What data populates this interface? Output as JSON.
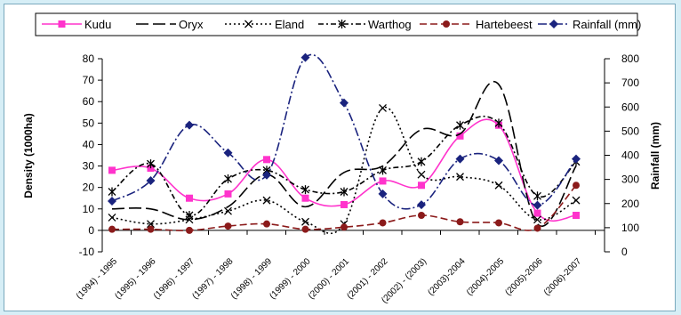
{
  "chart_data": {
    "type": "line",
    "categories": [
      "(1994) - 1995",
      "(1995) - 1996",
      "(1996) - 1997",
      "(1997) - 1998",
      "(1998) - 1999",
      "(1999) - 2000",
      "(2000) - 2001",
      "(2001) - 2002",
      "(2002) - (2003)",
      "(2003)-2004",
      "(2004)-2005",
      "(2005)-2006",
      "(2006)-2007"
    ],
    "ylabel": "Density (1000ha)",
    "y2label": "Rainfall (mm)",
    "ylim": [
      -10,
      80
    ],
    "y2lim": [
      0,
      800
    ],
    "yticks": [
      "-10",
      "0",
      "10",
      "20",
      "30",
      "40",
      "50",
      "60",
      "70",
      "80"
    ],
    "y2ticks": [
      "0",
      "100",
      "200",
      "300",
      "400",
      "500",
      "600",
      "700",
      "800"
    ],
    "legend_position": "top",
    "series": [
      {
        "name": "Kudu",
        "axis": "left",
        "color": "#ff33cc",
        "dash": "",
        "marker": "square",
        "values": [
          28,
          29,
          15,
          17,
          33,
          15,
          12,
          23,
          21,
          44,
          49,
          8,
          7
        ]
      },
      {
        "name": "Oryx",
        "axis": "left",
        "color": "#000000",
        "dash": "14 5",
        "marker": "none",
        "values": [
          10,
          10,
          5,
          11,
          26,
          11,
          27,
          30,
          47,
          45,
          68,
          3,
          30
        ]
      },
      {
        "name": "Eland",
        "axis": "left",
        "color": "#000000",
        "dash": "2 3",
        "marker": "x",
        "values": [
          6,
          3,
          5,
          9,
          14,
          4,
          3,
          57,
          26,
          25,
          21,
          5,
          14
        ]
      },
      {
        "name": "Warthog",
        "axis": "left",
        "color": "#000000",
        "dash": "6 3 2 3",
        "marker": "star",
        "values": [
          18,
          31,
          7,
          24,
          28,
          19,
          18,
          28,
          32,
          49,
          50,
          16,
          32
        ]
      },
      {
        "name": "Hartebeest",
        "axis": "left",
        "color": "#8b1a1a",
        "dash": "8 4",
        "marker": "circle",
        "values": [
          0.5,
          0.5,
          0,
          2,
          3,
          0.5,
          1.5,
          3.5,
          7,
          4,
          3.5,
          1,
          21
        ]
      },
      {
        "name": "Rainfall (mm)",
        "axis": "right",
        "color": "#1a237e",
        "dash": "10 3 2 3",
        "marker": "diamond",
        "values": [
          210,
          295,
          525,
          410,
          318,
          805,
          617,
          240,
          195,
          385,
          378,
          193,
          385
        ]
      }
    ]
  }
}
